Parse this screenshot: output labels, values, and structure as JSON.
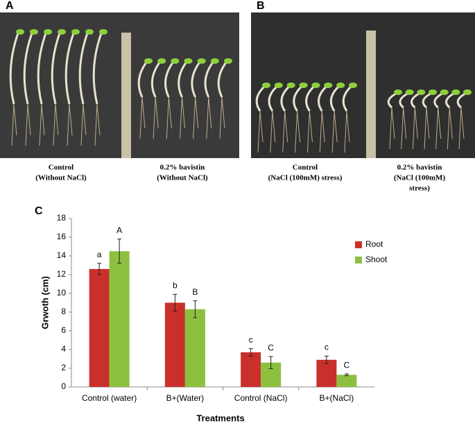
{
  "figure": {
    "panels": [
      {
        "label": "A",
        "captions": [
          [
            "Control",
            "(Without NaCl)"
          ],
          [
            "0.2% bavistin",
            "(Without NaCl)"
          ]
        ]
      },
      {
        "label": "B",
        "captions": [
          [
            "Control",
            "(NaCl (100mM) stress)"
          ],
          [
            "0.2% bavistin",
            "(NaCl (100mM)",
            "stress)"
          ]
        ]
      }
    ]
  },
  "chart_data": {
    "type": "bar",
    "panel_label": "C",
    "x_label": "Treatments",
    "y_label": "Grwoth (cm)",
    "categories": [
      "Control (water)",
      "B+(Water)",
      "Control (NaCl)",
      "B+(NaCl)"
    ],
    "series": [
      {
        "name": "Root",
        "color": "#c9302c",
        "values": [
          12.6,
          9.0,
          3.7,
          2.9
        ],
        "errors": [
          0.6,
          0.9,
          0.4,
          0.4
        ],
        "letters": [
          "a",
          "b",
          "c",
          "c"
        ]
      },
      {
        "name": "Shoot",
        "color": "#8dc03f",
        "values": [
          14.5,
          8.3,
          2.6,
          1.3
        ],
        "errors": [
          1.3,
          0.9,
          0.65,
          0.1
        ],
        "letters": [
          "A",
          "B",
          "C",
          "C"
        ]
      }
    ],
    "ylim": [
      0,
      18
    ],
    "yticks": [
      0,
      2,
      4,
      6,
      8,
      10,
      12,
      14,
      16,
      18
    ],
    "grid": false,
    "legend": "upper right"
  }
}
